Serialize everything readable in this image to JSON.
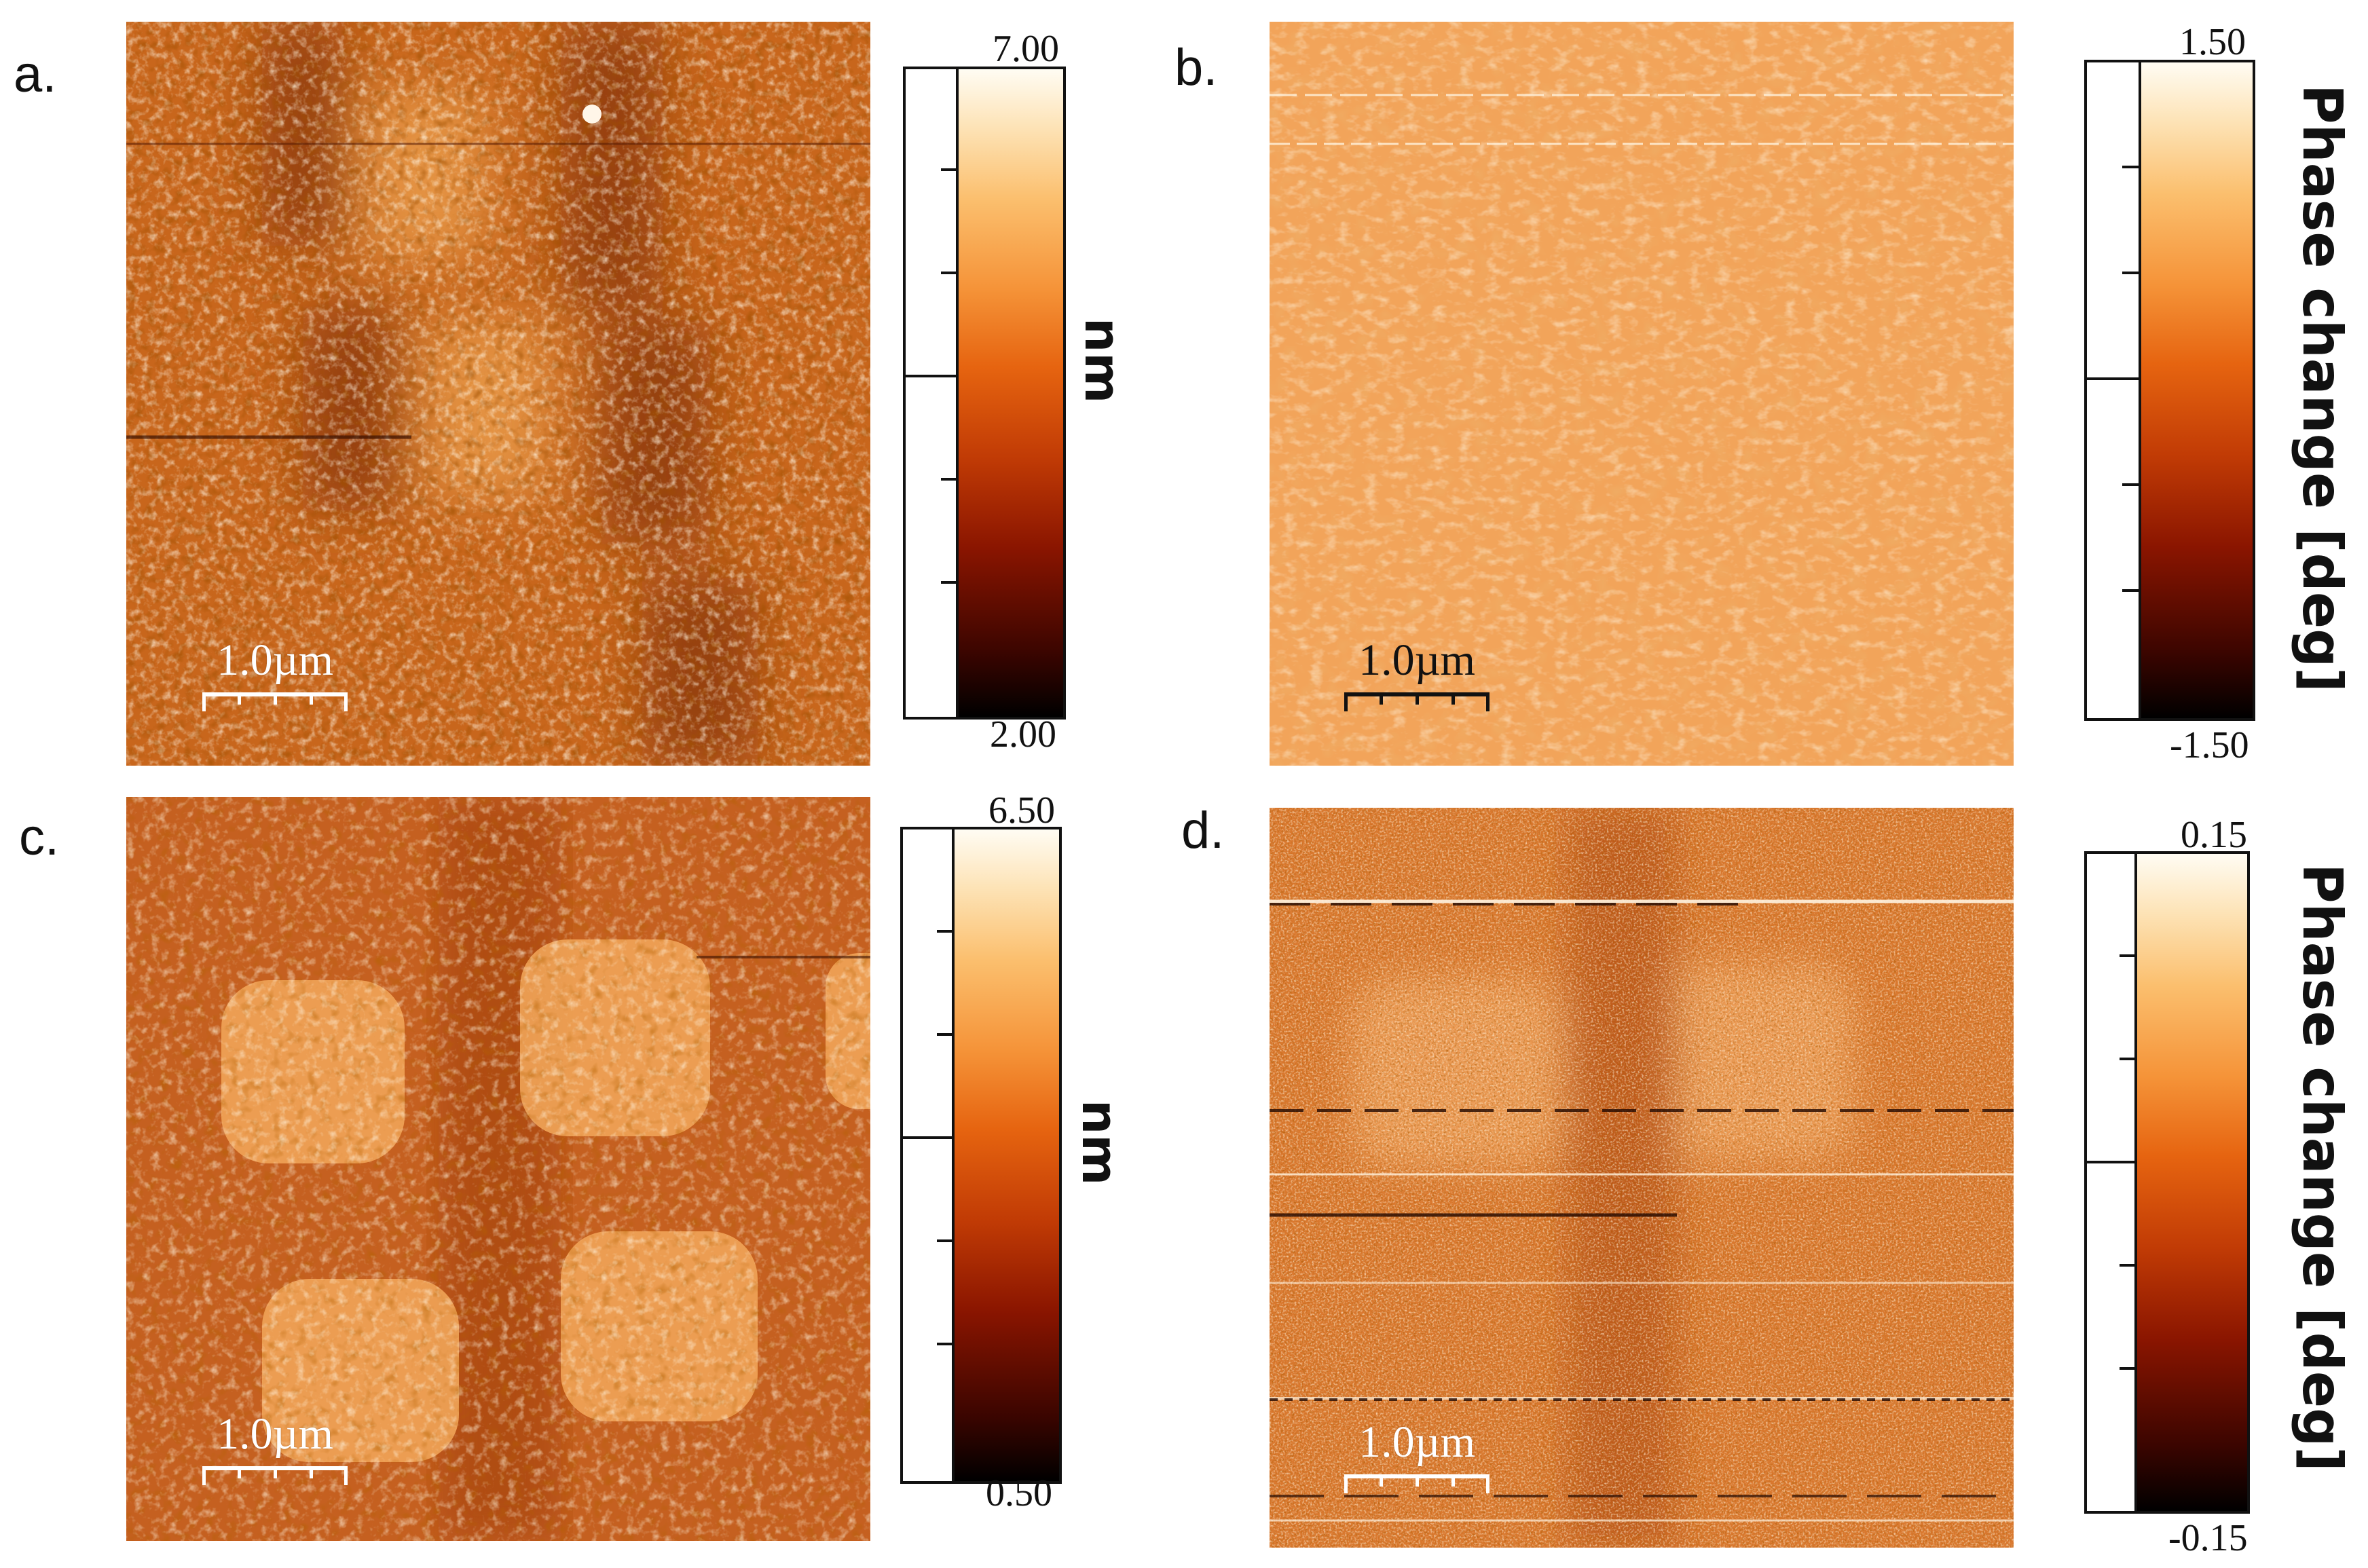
{
  "panels": [
    {
      "letter": "a.",
      "scale_label": "1.0µm",
      "cbar_max": "7.00",
      "cbar_min": "2.00",
      "unit": "nm",
      "base": "#c8661c"
    },
    {
      "letter": "b.",
      "scale_label": "1.0µm",
      "cbar_max": "1.50",
      "cbar_min": "-1.50",
      "unit": "Phase change [deg]",
      "base": "#f2a45a"
    },
    {
      "letter": "c.",
      "scale_label": "1.0µm",
      "cbar_max": "6.50",
      "cbar_min": "0.50",
      "unit": "nm",
      "base": "#cc6a22"
    },
    {
      "letter": "d.",
      "scale_label": "1.0µm",
      "cbar_max": "0.15",
      "cbar_min": "-0.15",
      "unit": "Phase change [deg]",
      "base": "#d9782e"
    }
  ]
}
